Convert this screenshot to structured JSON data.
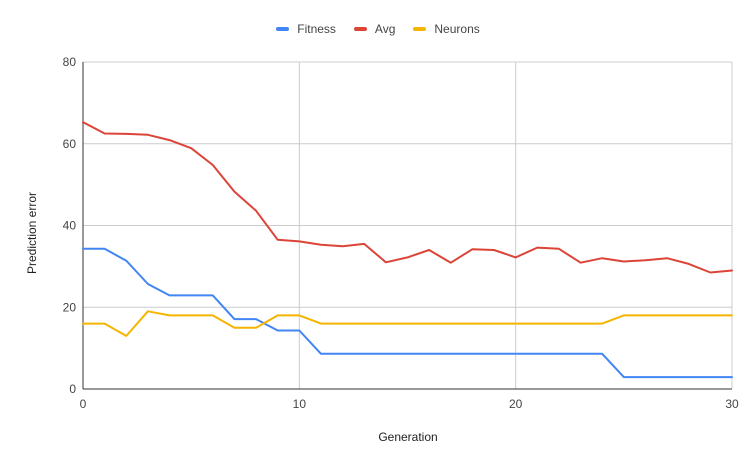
{
  "chart_data": {
    "type": "line",
    "title": "",
    "xlabel": "Generation",
    "ylabel": "Prediction error",
    "xlim": [
      0,
      30
    ],
    "ylim": [
      0,
      80
    ],
    "xticks": [
      0,
      10,
      20,
      30
    ],
    "yticks": [
      0,
      20,
      40,
      60,
      80
    ],
    "vertical_grid": true,
    "horizontal_grid": true,
    "legend_position": "top",
    "x": [
      0,
      1,
      2,
      3,
      4,
      5,
      6,
      7,
      8,
      9,
      10,
      11,
      12,
      13,
      14,
      15,
      16,
      17,
      18,
      19,
      20,
      21,
      22,
      23,
      24,
      25,
      26,
      27,
      28,
      29,
      30
    ],
    "series": [
      {
        "name": "Fitness",
        "color": "#4285f4",
        "values": [
          34.3,
          34.3,
          31.4,
          25.7,
          22.9,
          22.9,
          22.9,
          17.1,
          17.1,
          14.3,
          14.3,
          8.6,
          8.6,
          8.6,
          8.6,
          8.6,
          8.6,
          8.6,
          8.6,
          8.6,
          8.6,
          8.6,
          8.6,
          8.6,
          8.6,
          2.9,
          2.9,
          2.9,
          2.9,
          2.9,
          2.9
        ]
      },
      {
        "name": "Avg",
        "color": "#db4437",
        "values": [
          65.3,
          62.5,
          62.4,
          62.2,
          60.9,
          58.9,
          54.8,
          48.3,
          43.6,
          36.5,
          36.1,
          35.3,
          34.9,
          35.5,
          31.0,
          32.2,
          34.0,
          30.9,
          34.2,
          34.0,
          32.2,
          34.6,
          34.3,
          30.9,
          32.0,
          31.2,
          31.5,
          32.0,
          30.6,
          28.5,
          29.0
        ]
      },
      {
        "name": "Neurons",
        "color": "#f4b400",
        "values": [
          16,
          16,
          13,
          19,
          18,
          18,
          18,
          15,
          15,
          18,
          18,
          16,
          16,
          16,
          16,
          16,
          16,
          16,
          16,
          16,
          16,
          16,
          16,
          16,
          16,
          18,
          18,
          18,
          18,
          18,
          18
        ]
      }
    ]
  }
}
